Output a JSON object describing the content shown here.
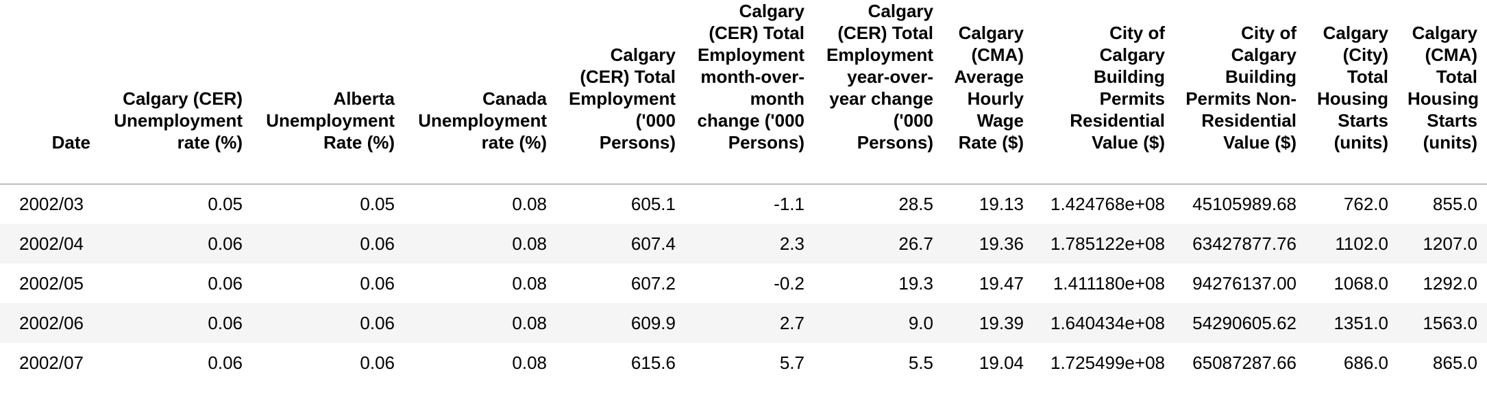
{
  "table": {
    "columns": [
      "Date",
      "Calgary (CER) Unemployment rate (%)",
      "Alberta Unemployment Rate (%)",
      "Canada Unemployment rate (%)",
      "Calgary (CER) Total Employment ('000 Persons)",
      "Calgary (CER) Total Employment month-over-month change ('000 Persons)",
      "Calgary (CER) Total Employment year-over-year change ('000 Persons)",
      "Calgary (CMA) Average Hourly Wage Rate ($)",
      "City of Calgary Building Permits Residential Value ($)",
      "City of Calgary Building Permits Non-Residential Value ($)",
      "Calgary (City) Total Housing Starts (units)",
      "Calgary (CMA) Total Housing Starts (units)"
    ],
    "rows": [
      [
        "2002/03",
        "0.05",
        "0.05",
        "0.08",
        "605.1",
        "-1.1",
        "28.5",
        "19.13",
        "1.424768e+08",
        "45105989.68",
        "762.0",
        "855.0"
      ],
      [
        "2002/04",
        "0.06",
        "0.06",
        "0.08",
        "607.4",
        "2.3",
        "26.7",
        "19.36",
        "1.785122e+08",
        "63427877.76",
        "1102.0",
        "1207.0"
      ],
      [
        "2002/05",
        "0.06",
        "0.06",
        "0.08",
        "607.2",
        "-0.2",
        "19.3",
        "19.47",
        "1.411180e+08",
        "94276137.00",
        "1068.0",
        "1292.0"
      ],
      [
        "2002/06",
        "0.06",
        "0.06",
        "0.08",
        "609.9",
        "2.7",
        "9.0",
        "19.39",
        "1.640434e+08",
        "54290605.62",
        "1351.0",
        "1563.0"
      ],
      [
        "2002/07",
        "0.06",
        "0.06",
        "0.08",
        "615.6",
        "5.7",
        "5.5",
        "19.04",
        "1.725499e+08",
        "65087287.66",
        "686.0",
        "865.0"
      ]
    ]
  }
}
